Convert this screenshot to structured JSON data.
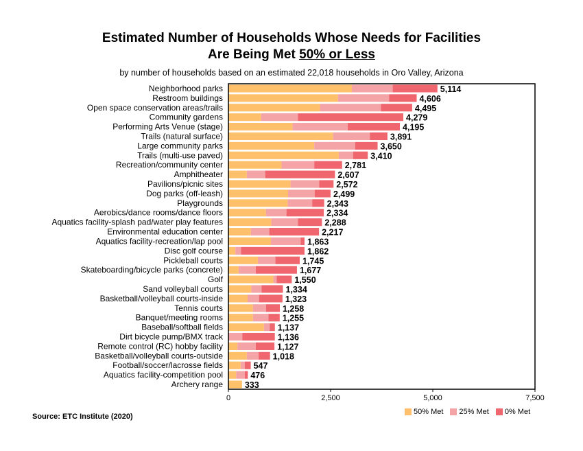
{
  "title_line1": "Estimated Number of Households Whose Needs for Facilities",
  "title_line2_prefix": "Are Being Met ",
  "title_line2_underlined": "50% or Less",
  "subtitle": "by number of households based on an estimated 22,018 households in Oro Valley, Arizona",
  "source": "Source:  ETC Institute (2020)",
  "colors": {
    "met50": "#FFC06C",
    "met25": "#F4A3A6",
    "met0": "#F0666E"
  },
  "chart_data": {
    "type": "bar",
    "orientation": "horizontal",
    "stacked": true,
    "xlim": [
      0,
      7500
    ],
    "x_ticks": [
      "0",
      "2,500",
      "5,000",
      "7,500"
    ],
    "categories": [
      "Neighborhood parks",
      "Restroom buildings",
      "Open space conservation areas/trails",
      "Community gardens",
      "Performing Arts Venue (stage)",
      "Trails (natural surface)",
      "Large community parks",
      "Trails (multi-use paved)",
      "Recreation/community center",
      "Amphitheater",
      "Pavilions/picnic sites",
      "Dog parks (off-leash)",
      "Playgrounds",
      "Aerobics/dance rooms/dance floors",
      "Aquatics facility-splash pad/water play features",
      "Environmental education center",
      "Aquatics facility-recreation/lap pool",
      "Disc golf course",
      "Pickleball courts",
      "Skateboarding/bicycle parks (concrete)",
      "Golf",
      "Sand volleyball courts",
      "Basketball/volleyball courts-inside",
      "Tennis courts",
      "Banquet/meeting rooms",
      "Baseball/softball fields",
      "Dirt bicycle pump/BMX track",
      "Remote control (RC) hobby facility",
      "Basketball/volleyball courts-outside",
      "Football/soccer/lacrosse fields",
      "Aquatics facility-competition pool",
      "Archery range"
    ],
    "total_labels": [
      "5,114",
      "4,606",
      "4,495",
      "4,279",
      "4,195",
      "3,891",
      "3,650",
      "3,410",
      "2,781",
      "2,607",
      "2,572",
      "2,499",
      "2,343",
      "2,334",
      "2,288",
      "2,217",
      "1,863",
      "1,862",
      "1,745",
      "1,677",
      "1,550",
      "1,334",
      "1,323",
      "1,258",
      "1,255",
      "1,137",
      "1,136",
      "1,127",
      "1,018",
      "547",
      "476",
      "333"
    ],
    "series": [
      {
        "name": "50% Met",
        "values": [
          3020,
          2680,
          2240,
          800,
          1570,
          2560,
          2100,
          2700,
          1300,
          450,
          1520,
          1460,
          1450,
          920,
          1050,
          550,
          1040,
          170,
          720,
          250,
          1100,
          560,
          470,
          600,
          600,
          870,
          0,
          220,
          450,
          300,
          190,
          333
        ]
      },
      {
        "name": "25% Met",
        "values": [
          1000,
          1250,
          1490,
          900,
          1350,
          900,
          1000,
          350,
          800,
          450,
          700,
          650,
          600,
          500,
          650,
          450,
          730,
          140,
          430,
          420,
          80,
          250,
          280,
          320,
          380,
          140,
          340,
          450,
          290,
          100,
          210,
          0
        ]
      },
      {
        "name": "0% Met",
        "values": [
          1094,
          676,
          765,
          2579,
          1275,
          431,
          550,
          360,
          681,
          1707,
          352,
          389,
          293,
          914,
          588,
          1217,
          93,
          1552,
          595,
          1007,
          370,
          524,
          573,
          338,
          275,
          127,
          796,
          457,
          278,
          147,
          76,
          0
        ]
      }
    ]
  }
}
